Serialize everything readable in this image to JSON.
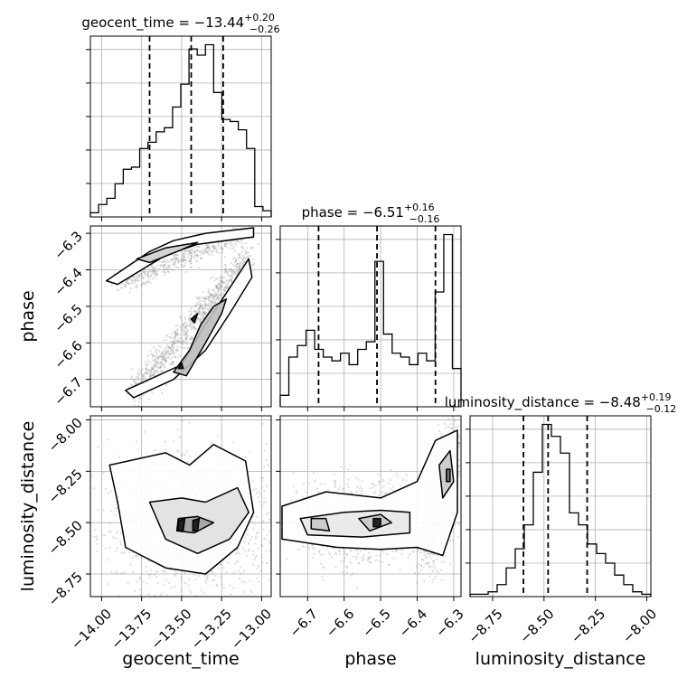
{
  "chart_data": {
    "type": "corner",
    "parameters": [
      "geocent_time",
      "phase",
      "luminosity_distance"
    ],
    "titles": [
      {
        "label": "geocent_time = −13.44",
        "plus": "+0.20",
        "minus": "−0.26"
      },
      {
        "label": "phase = −6.51",
        "plus": "+0.16",
        "minus": "−0.16"
      },
      {
        "label": "luminosity_distance = −8.48",
        "plus": "+0.19",
        "minus": "−0.12"
      }
    ],
    "axes": {
      "geocent_time": {
        "range": [
          -14.07,
          -12.94
        ],
        "ticks": [
          -14.0,
          -13.75,
          -13.5,
          -13.25,
          -13.0
        ],
        "tick_labels": [
          "−14.00",
          "−13.75",
          "−13.50",
          "−13.25",
          "−13.00"
        ]
      },
      "phase": {
        "range": [
          -6.775,
          -6.28
        ],
        "ticks": [
          -6.7,
          -6.6,
          -6.5,
          -6.4,
          -6.3
        ],
        "tick_labels": [
          "−6.7",
          "−6.6",
          "−6.5",
          "−6.4",
          "−6.3"
        ]
      },
      "luminosity_distance": {
        "range": [
          -8.86,
          -7.98
        ],
        "ticks": [
          -8.75,
          -8.5,
          -8.25,
          -8.0
        ],
        "tick_labels": [
          "−8.75",
          "−8.50",
          "−8.25",
          "−8.00"
        ]
      }
    },
    "quantiles": {
      "geocent_time": [
        -13.7,
        -13.44,
        -13.24
      ],
      "phase": [
        -6.67,
        -6.51,
        -6.35
      ],
      "luminosity_distance": [
        -8.6,
        -8.48,
        -8.29
      ]
    },
    "histograms": {
      "geocent_time": {
        "edges_range": [
          -14.07,
          -12.94
        ],
        "counts": [
          2,
          6,
          9,
          16,
          23,
          24,
          33,
          36,
          41,
          43,
          53,
          64,
          81,
          78,
          83,
          60,
          47,
          46,
          42,
          33,
          5,
          3
        ]
      },
      "phase": {
        "edges_range": [
          -6.775,
          -6.28
        ],
        "counts": [
          3,
          13,
          16,
          20,
          15,
          13,
          12,
          14,
          11,
          15,
          17,
          38,
          19,
          14,
          13,
          11,
          14,
          12,
          30,
          45,
          10
        ]
      },
      "luminosity_distance": {
        "edges_range": [
          -8.86,
          -7.98
        ],
        "counts": [
          1,
          1,
          2,
          5,
          12,
          20,
          30,
          52,
          72,
          67,
          60,
          35,
          30,
          22,
          18,
          14,
          9,
          5,
          2,
          1
        ]
      }
    },
    "contour_levels": 3,
    "grid": true
  }
}
